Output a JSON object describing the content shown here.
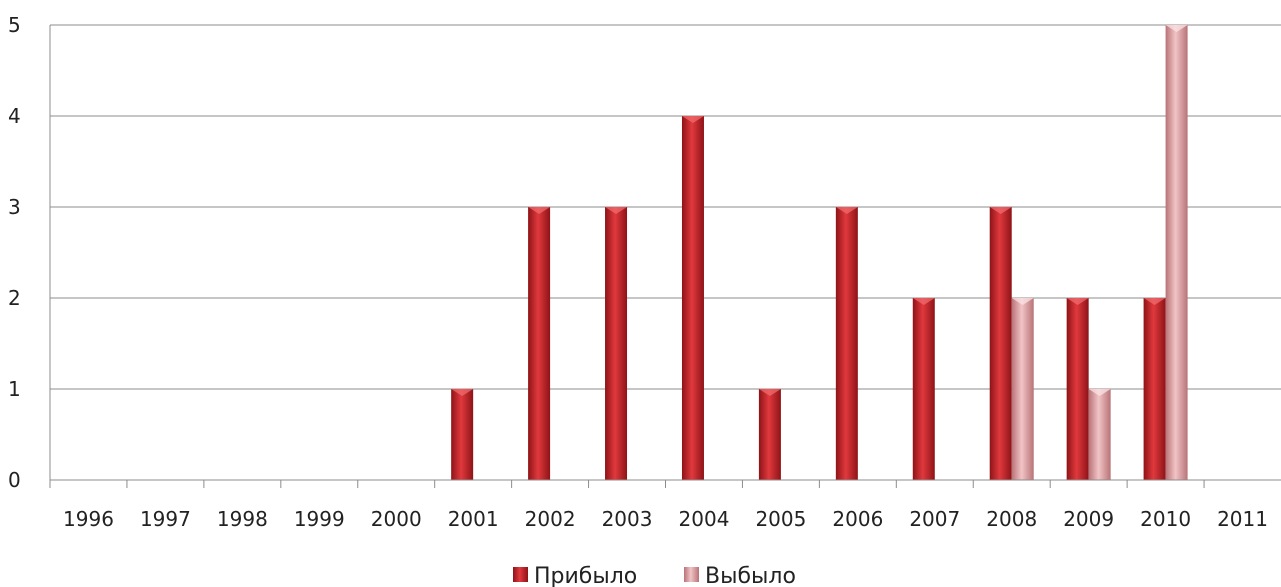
{
  "chart_data": {
    "type": "bar",
    "title": "",
    "xlabel": "",
    "ylabel": "",
    "categories": [
      "1996",
      "1997",
      "1998",
      "1999",
      "2000",
      "2001",
      "2002",
      "2003",
      "2004",
      "2005",
      "2006",
      "2007",
      "2008",
      "2009",
      "2010",
      "2011"
    ],
    "series": [
      {
        "name": "Прибыло",
        "color": "#c0262b",
        "values": [
          0,
          0,
          0,
          0,
          0,
          1,
          3,
          3,
          4,
          1,
          3,
          2,
          3,
          2,
          2,
          0
        ]
      },
      {
        "name": "Выбыло",
        "color": "#d99a9c",
        "values": [
          0,
          0,
          0,
          0,
          0,
          0,
          0,
          0,
          0,
          0,
          0,
          0,
          2,
          1,
          5,
          0
        ]
      }
    ],
    "ylim": [
      0,
      5
    ],
    "yticks": [
      "0",
      "1",
      "2",
      "3",
      "4",
      "5"
    ],
    "grid": true,
    "legend_position": "bottom"
  }
}
